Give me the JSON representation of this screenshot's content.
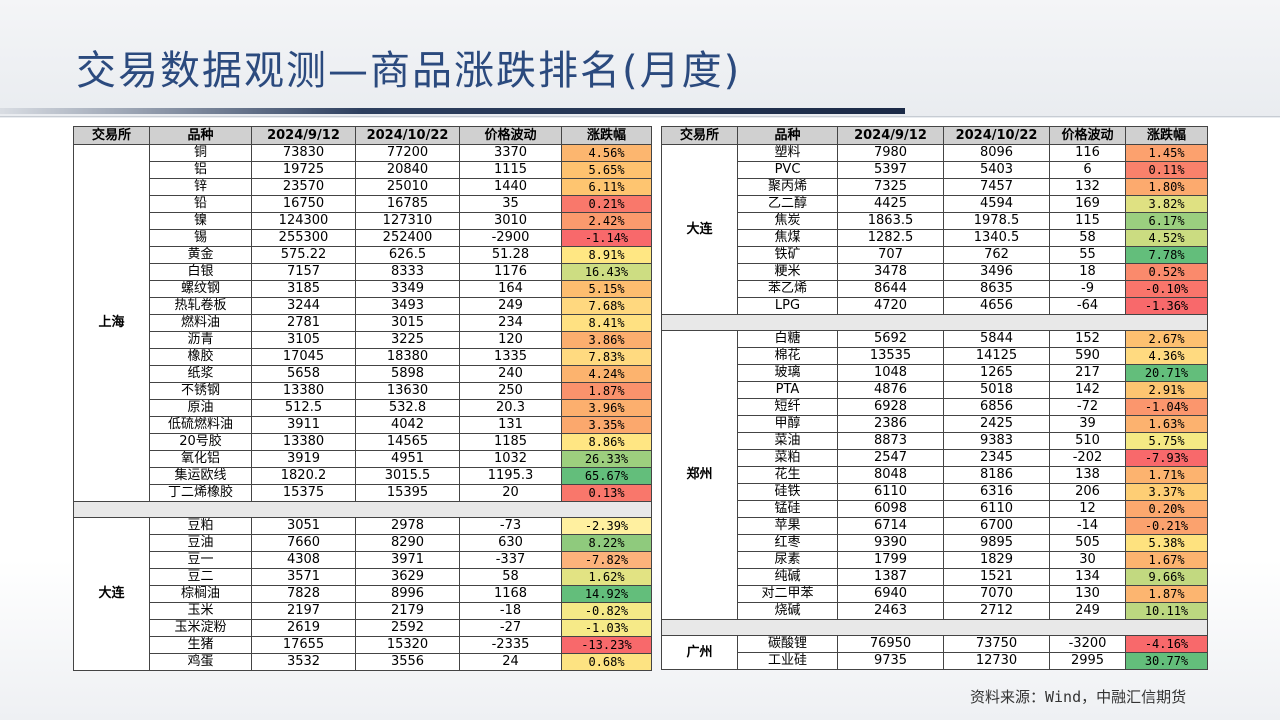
{
  "title": "交易数据观测—商品涨跌排名(月度)",
  "footer": "资料来源：Wind，中融汇信期货",
  "headers": [
    "交易所",
    "品种",
    "2024/9/12",
    "2024/10/22",
    "价格波动",
    "涨跌幅"
  ],
  "left_groups": [
    {
      "exchange": "上海",
      "rows": [
        {
          "name": "铜",
          "p1": "73830",
          "p2": "77200",
          "chg": "3370",
          "pct": "4.56%",
          "bg": "#fcb66f"
        },
        {
          "name": "铝",
          "p1": "19725",
          "p2": "20840",
          "chg": "1115",
          "pct": "5.65%",
          "bg": "#fec26f"
        },
        {
          "name": "锌",
          "p1": "23570",
          "p2": "25010",
          "chg": "1440",
          "pct": "6.11%",
          "bg": "#fec570"
        },
        {
          "name": "铅",
          "p1": "16750",
          "p2": "16785",
          "chg": "35",
          "pct": "0.21%",
          "bg": "#f9786b"
        },
        {
          "name": "镍",
          "p1": "124300",
          "p2": "127310",
          "chg": "3010",
          "pct": "2.42%",
          "bg": "#fb9a6d"
        },
        {
          "name": "锡",
          "p1": "255300",
          "p2": "252400",
          "chg": "-2900",
          "pct": "-1.14%",
          "bg": "#f8696b"
        },
        {
          "name": "黄金",
          "p1": "575.22",
          "p2": "626.5",
          "chg": "51.28",
          "pct": "8.91%",
          "bg": "#ffe783"
        },
        {
          "name": "白银",
          "p1": "7157",
          "p2": "8333",
          "chg": "1176",
          "pct": "16.43%",
          "bg": "#cddd82"
        },
        {
          "name": "螺纹钢",
          "p1": "3185",
          "p2": "3349",
          "chg": "164",
          "pct": "5.15%",
          "bg": "#fdbd6f"
        },
        {
          "name": "热轧卷板",
          "p1": "3244",
          "p2": "3493",
          "chg": "249",
          "pct": "7.68%",
          "bg": "#ffd87f"
        },
        {
          "name": "燃料油",
          "p1": "2781",
          "p2": "3015",
          "chg": "234",
          "pct": "8.41%",
          "bg": "#ffe182"
        },
        {
          "name": "沥青",
          "p1": "3105",
          "p2": "3225",
          "chg": "120",
          "pct": "3.86%",
          "bg": "#fcae6e"
        },
        {
          "name": "橡胶",
          "p1": "17045",
          "p2": "18380",
          "chg": "1335",
          "pct": "7.83%",
          "bg": "#ffda80"
        },
        {
          "name": "纸浆",
          "p1": "5658",
          "p2": "5898",
          "chg": "240",
          "pct": "4.24%",
          "bg": "#fcb36e"
        },
        {
          "name": "不锈钢",
          "p1": "13380",
          "p2": "13630",
          "chg": "250",
          "pct": "1.87%",
          "bg": "#fa926c"
        },
        {
          "name": "原油",
          "p1": "512.5",
          "p2": "532.8",
          "chg": "20.3",
          "pct": "3.96%",
          "bg": "#fcaf6e"
        },
        {
          "name": "低硫燃料油",
          "p1": "3911",
          "p2": "4042",
          "chg": "131",
          "pct": "3.35%",
          "bg": "#fba86d"
        },
        {
          "name": "20号胶",
          "p1": "13380",
          "p2": "14565",
          "chg": "1185",
          "pct": "8.86%",
          "bg": "#ffe683"
        },
        {
          "name": "氧化铝",
          "p1": "3919",
          "p2": "4951",
          "chg": "1032",
          "pct": "26.33%",
          "bg": "#9dcf7e"
        },
        {
          "name": "集运欧线",
          "p1": "1820.2",
          "p2": "3015.5",
          "chg": "1195.3",
          "pct": "65.67%",
          "bg": "#63be7b"
        },
        {
          "name": "丁二烯橡胶",
          "p1": "15375",
          "p2": "15395",
          "chg": "20",
          "pct": "0.13%",
          "bg": "#f9776b"
        }
      ]
    },
    {
      "exchange": "大连",
      "rows": [
        {
          "name": "豆粕",
          "p1": "3051",
          "p2": "2978",
          "chg": "-73",
          "pct": "-2.39%",
          "bg": "#fff0a0"
        },
        {
          "name": "豆油",
          "p1": "7660",
          "p2": "8290",
          "chg": "630",
          "pct": "8.22%",
          "bg": "#8fca7d"
        },
        {
          "name": "豆一",
          "p1": "4308",
          "p2": "3971",
          "chg": "-337",
          "pct": "-7.82%",
          "bg": "#fcb27b"
        },
        {
          "name": "豆二",
          "p1": "3571",
          "p2": "3629",
          "chg": "58",
          "pct": "1.62%",
          "bg": "#e2e383"
        },
        {
          "name": "棕榈油",
          "p1": "7828",
          "p2": "8996",
          "chg": "1168",
          "pct": "14.92%",
          "bg": "#63be7b"
        },
        {
          "name": "玉米",
          "p1": "2197",
          "p2": "2179",
          "chg": "-18",
          "pct": "-0.82%",
          "bg": "#f5e987"
        },
        {
          "name": "玉米淀粉",
          "p1": "2619",
          "p2": "2592",
          "chg": "-27",
          "pct": "-1.03%",
          "bg": "#f6ea88"
        },
        {
          "name": "生猪",
          "p1": "17655",
          "p2": "15320",
          "chg": "-2335",
          "pct": "-13.23%",
          "bg": "#f8696b"
        },
        {
          "name": "鸡蛋",
          "p1": "3532",
          "p2": "3556",
          "chg": "24",
          "pct": "0.68%",
          "bg": "#fde382"
        }
      ]
    }
  ],
  "right_groups": [
    {
      "exchange": "大连",
      "rows": [
        {
          "name": "塑料",
          "p1": "7980",
          "p2": "8096",
          "chg": "116",
          "pct": "1.45%",
          "bg": "#fca16e"
        },
        {
          "name": "PVC",
          "p1": "5397",
          "p2": "5403",
          "chg": "6",
          "pct": "0.11%",
          "bg": "#f9816b"
        },
        {
          "name": "聚丙烯",
          "p1": "7325",
          "p2": "7457",
          "chg": "132",
          "pct": "1.80%",
          "bg": "#fcaa6e"
        },
        {
          "name": "乙二醇",
          "p1": "4425",
          "p2": "4594",
          "chg": "169",
          "pct": "3.82%",
          "bg": "#dfe182"
        },
        {
          "name": "焦炭",
          "p1": "1863.5",
          "p2": "1978.5",
          "chg": "115",
          "pct": "6.17%",
          "bg": "#9bcf7f"
        },
        {
          "name": "焦煤",
          "p1": "1282.5",
          "p2": "1340.5",
          "chg": "58",
          "pct": "4.52%",
          "bg": "#cbdc81"
        },
        {
          "name": "铁矿",
          "p1": "707",
          "p2": "762",
          "chg": "55",
          "pct": "7.78%",
          "bg": "#63be7b"
        },
        {
          "name": "粳米",
          "p1": "3478",
          "p2": "3496",
          "chg": "18",
          "pct": "0.52%",
          "bg": "#fa8a6c"
        },
        {
          "name": "苯乙烯",
          "p1": "8644",
          "p2": "8635",
          "chg": "-9",
          "pct": "-0.10%",
          "bg": "#f9756b"
        },
        {
          "name": "LPG",
          "p1": "4720",
          "p2": "4656",
          "chg": "-64",
          "pct": "-1.36%",
          "bg": "#f8696b"
        }
      ]
    },
    {
      "exchange": "郑州",
      "rows": [
        {
          "name": "白糖",
          "p1": "5692",
          "p2": "5844",
          "chg": "152",
          "pct": "2.67%",
          "bg": "#fdc070"
        },
        {
          "name": "棉花",
          "p1": "13535",
          "p2": "14125",
          "chg": "590",
          "pct": "4.36%",
          "bg": "#ffda80"
        },
        {
          "name": "玻璃",
          "p1": "1048",
          "p2": "1265",
          "chg": "217",
          "pct": "20.71%",
          "bg": "#63be7b"
        },
        {
          "name": "PTA",
          "p1": "4876",
          "p2": "5018",
          "chg": "142",
          "pct": "2.91%",
          "bg": "#fdc571"
        },
        {
          "name": "短纤",
          "p1": "6928",
          "p2": "6856",
          "chg": "-72",
          "pct": "-1.04%",
          "bg": "#fb966d"
        },
        {
          "name": "甲醇",
          "p1": "2386",
          "p2": "2425",
          "chg": "39",
          "pct": "1.63%",
          "bg": "#fcb26f"
        },
        {
          "name": "菜油",
          "p1": "8873",
          "p2": "9383",
          "chg": "510",
          "pct": "5.75%",
          "bg": "#f5e984"
        },
        {
          "name": "菜粕",
          "p1": "2547",
          "p2": "2345",
          "chg": "-202",
          "pct": "-7.93%",
          "bg": "#f8696b"
        },
        {
          "name": "花生",
          "p1": "8048",
          "p2": "8186",
          "chg": "138",
          "pct": "1.71%",
          "bg": "#fcb36f"
        },
        {
          "name": "硅铁",
          "p1": "6110",
          "p2": "6316",
          "chg": "206",
          "pct": "3.37%",
          "bg": "#fece75"
        },
        {
          "name": "锰硅",
          "p1": "6098",
          "p2": "6110",
          "chg": "12",
          "pct": "0.20%",
          "bg": "#fca86e"
        },
        {
          "name": "苹果",
          "p1": "6714",
          "p2": "6700",
          "chg": "-14",
          "pct": "-0.21%",
          "bg": "#fba26e"
        },
        {
          "name": "红枣",
          "p1": "9390",
          "p2": "9895",
          "chg": "505",
          "pct": "5.38%",
          "bg": "#fee27f"
        },
        {
          "name": "尿素",
          "p1": "1799",
          "p2": "1829",
          "chg": "30",
          "pct": "1.67%",
          "bg": "#fcb36f"
        },
        {
          "name": "纯碱",
          "p1": "1387",
          "p2": "1521",
          "chg": "134",
          "pct": "9.66%",
          "bg": "#c2d980"
        },
        {
          "name": "对二甲苯",
          "p1": "6940",
          "p2": "7070",
          "chg": "130",
          "pct": "1.87%",
          "bg": "#fcb570"
        },
        {
          "name": "烧碱",
          "p1": "2463",
          "p2": "2712",
          "chg": "249",
          "pct": "10.11%",
          "bg": "#bcd780"
        }
      ]
    },
    {
      "exchange": "广州",
      "rows": [
        {
          "name": "碳酸锂",
          "p1": "76950",
          "p2": "73750",
          "chg": "-3200",
          "pct": "-4.16%",
          "bg": "#f8696b"
        },
        {
          "name": "工业硅",
          "p1": "9735",
          "p2": "12730",
          "chg": "2995",
          "pct": "30.77%",
          "bg": "#63be7b"
        }
      ]
    }
  ]
}
